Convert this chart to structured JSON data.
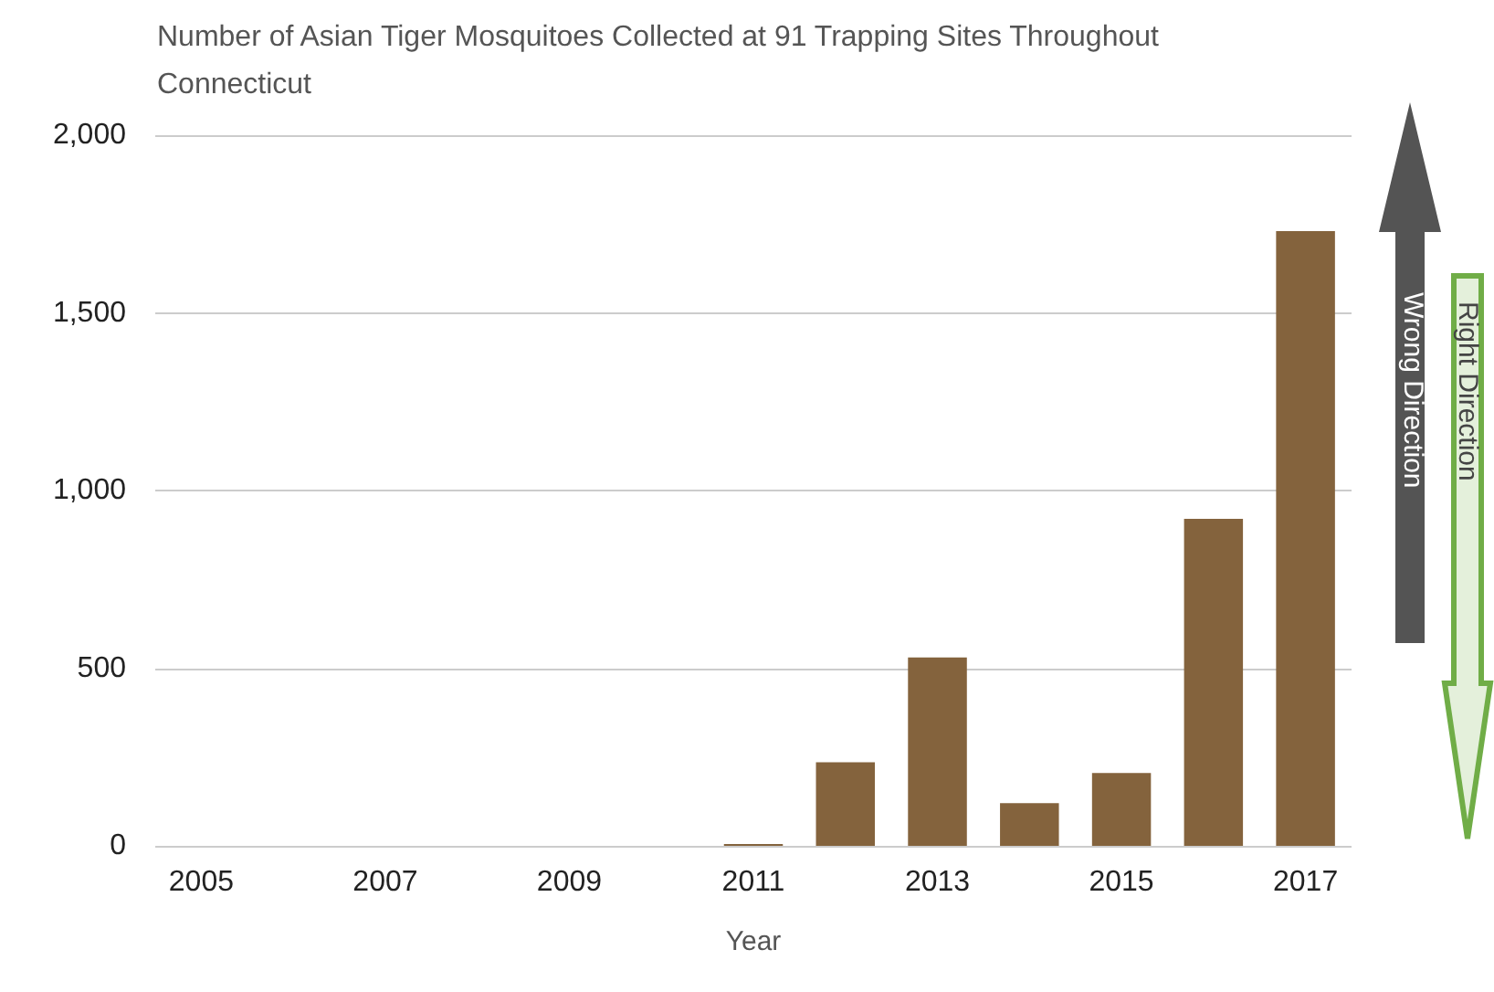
{
  "chart_data": {
    "type": "bar",
    "title": "Number of Asian Tiger Mosquitoes Collected at 91 Trapping Sites Throughout Connecticut",
    "xlabel": "Year",
    "categories": [
      "2005",
      null,
      "2007",
      null,
      "2009",
      null,
      "2011",
      null,
      "2013",
      null,
      "2015",
      null,
      "2017"
    ],
    "values": [
      0,
      0,
      0,
      0,
      0,
      0,
      5,
      235,
      530,
      120,
      205,
      920,
      1730
    ],
    "color": "#84633d",
    "ylim": [
      0,
      2000
    ],
    "yticks": [
      {
        "value": 0,
        "label": "0"
      },
      {
        "value": 500,
        "label": "500"
      },
      {
        "value": 1000,
        "label": "1,000"
      },
      {
        "value": 1500,
        "label": "1,500"
      },
      {
        "value": 2000,
        "label": "2,000"
      }
    ],
    "grid": "y",
    "annotations": [
      "Wrong Direction",
      "Right Direction"
    ]
  }
}
